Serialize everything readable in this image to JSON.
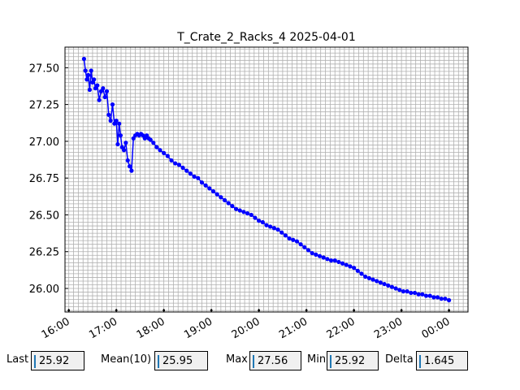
{
  "chart_data": {
    "type": "line",
    "title": "T_Crate_2_Racks_4 2025-04-01",
    "xlabel": "",
    "ylabel": "",
    "x_unit": "hours (time of day)",
    "xlim": [
      15.92,
      24.4
    ],
    "ylim": [
      25.84,
      27.64
    ],
    "x_tick_labels": [
      "16:00",
      "17:00",
      "18:00",
      "19:00",
      "20:00",
      "21:00",
      "22:00",
      "23:00",
      "00:00"
    ],
    "x_ticks": [
      16,
      17,
      18,
      19,
      20,
      21,
      22,
      23,
      24
    ],
    "y_tick_labels": [
      "26.00",
      "26.25",
      "26.50",
      "26.75",
      "27.00",
      "27.25",
      "27.50"
    ],
    "y_ticks": [
      26.0,
      26.25,
      26.5,
      26.75,
      27.0,
      27.25,
      27.5
    ],
    "grid": true,
    "legend": "none",
    "series": [
      {
        "color": "#0000ff",
        "marker": "dot",
        "x": [
          16.32,
          16.35,
          16.38,
          16.41,
          16.44,
          16.47,
          16.5,
          16.53,
          16.56,
          16.6,
          16.64,
          16.68,
          16.72,
          16.76,
          16.8,
          16.84,
          16.88,
          16.92,
          16.96,
          17.0,
          17.03,
          17.06,
          17.09,
          17.12,
          17.16,
          17.2,
          17.24,
          17.28,
          17.32,
          17.36,
          17.4,
          17.44,
          17.48,
          17.52,
          17.56,
          17.6,
          17.64,
          17.68,
          17.72,
          17.78,
          17.85,
          17.92,
          18.0,
          18.08,
          18.16,
          18.24,
          18.32,
          18.4,
          18.48,
          18.56,
          18.64,
          18.72,
          18.8,
          18.88,
          18.96,
          19.04,
          19.12,
          19.2,
          19.28,
          19.36,
          19.44,
          19.52,
          19.6,
          19.68,
          19.76,
          19.84,
          19.92,
          20.0,
          20.08,
          20.16,
          20.24,
          20.32,
          20.4,
          20.48,
          20.56,
          20.64,
          20.72,
          20.8,
          20.88,
          20.96,
          21.04,
          21.12,
          21.2,
          21.28,
          21.36,
          21.44,
          21.52,
          21.6,
          21.68,
          21.76,
          21.84,
          21.92,
          22.0,
          22.08,
          22.16,
          22.24,
          22.32,
          22.4,
          22.48,
          22.56,
          22.64,
          22.72,
          22.8,
          22.88,
          22.96,
          23.04,
          23.12,
          23.2,
          23.28,
          23.36,
          23.44,
          23.52,
          23.6,
          23.68,
          23.76,
          23.84,
          23.92,
          24.0
        ],
        "y": [
          27.56,
          27.48,
          27.42,
          27.45,
          27.35,
          27.48,
          27.4,
          27.42,
          27.36,
          27.38,
          27.28,
          27.34,
          27.36,
          27.3,
          27.34,
          27.18,
          27.14,
          27.25,
          27.12,
          27.14,
          26.98,
          27.12,
          27.04,
          26.96,
          26.94,
          26.99,
          26.87,
          26.83,
          26.8,
          27.02,
          27.04,
          27.05,
          27.04,
          27.05,
          27.04,
          27.02,
          27.04,
          27.02,
          27.01,
          26.99,
          26.96,
          26.94,
          26.92,
          26.9,
          26.87,
          26.85,
          26.84,
          26.82,
          26.8,
          26.78,
          26.76,
          26.75,
          26.72,
          26.7,
          26.68,
          26.66,
          26.64,
          26.62,
          26.6,
          26.58,
          26.56,
          26.54,
          26.53,
          26.52,
          26.51,
          26.5,
          26.48,
          26.46,
          26.45,
          26.43,
          26.42,
          26.41,
          26.4,
          26.38,
          26.36,
          26.34,
          26.33,
          26.32,
          26.3,
          26.28,
          26.26,
          26.24,
          26.23,
          26.22,
          26.21,
          26.2,
          26.19,
          26.19,
          26.18,
          26.17,
          26.16,
          26.15,
          26.14,
          26.12,
          26.1,
          26.08,
          26.07,
          26.06,
          26.05,
          26.04,
          26.03,
          26.02,
          26.01,
          26.0,
          25.99,
          25.98,
          25.98,
          25.97,
          25.97,
          25.96,
          25.96,
          25.95,
          25.95,
          25.94,
          25.94,
          25.93,
          25.93,
          25.92
        ]
      }
    ]
  },
  "stats": {
    "last_label": "Last",
    "last_value": "25.92",
    "mean_label": "Mean(10)",
    "mean_value": "25.95",
    "max_label": "Max",
    "max_value": "27.56",
    "min_label": "Min",
    "min_value": "25.92",
    "delta_label": "Delta",
    "delta_value": "1.645"
  }
}
